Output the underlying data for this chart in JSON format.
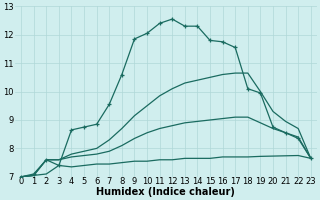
{
  "xlabel": "Humidex (Indice chaleur)",
  "bg_color": "#d0eeee",
  "grid_color": "#b0d8d8",
  "line_color": "#1a6b60",
  "xlim": [
    -0.5,
    23.5
  ],
  "ylim": [
    7,
    13
  ],
  "xticks": [
    0,
    1,
    2,
    3,
    4,
    5,
    6,
    7,
    8,
    9,
    10,
    11,
    12,
    13,
    14,
    15,
    16,
    17,
    18,
    19,
    20,
    21,
    22,
    23
  ],
  "yticks": [
    7,
    8,
    9,
    10,
    11,
    12,
    13
  ],
  "series1_x": [
    0,
    1,
    2,
    3,
    4,
    5,
    6,
    7,
    8,
    9,
    10,
    11,
    12,
    13,
    14,
    15,
    16,
    17,
    18,
    19,
    20,
    21,
    22,
    23
  ],
  "series1_y": [
    7.0,
    7.05,
    7.1,
    7.4,
    7.35,
    7.4,
    7.45,
    7.45,
    7.5,
    7.55,
    7.55,
    7.6,
    7.6,
    7.65,
    7.65,
    7.65,
    7.7,
    7.7,
    7.7,
    7.72,
    7.73,
    7.74,
    7.75,
    7.65
  ],
  "series2_x": [
    0,
    1,
    2,
    3,
    4,
    5,
    6,
    7,
    8,
    9,
    10,
    11,
    12,
    13,
    14,
    15,
    16,
    17,
    18,
    19,
    20,
    21,
    22,
    23
  ],
  "series2_y": [
    7.0,
    7.05,
    7.6,
    7.6,
    7.7,
    7.75,
    7.8,
    7.9,
    8.1,
    8.35,
    8.55,
    8.7,
    8.8,
    8.9,
    8.95,
    9.0,
    9.05,
    9.1,
    9.1,
    8.9,
    8.7,
    8.55,
    8.4,
    7.65
  ],
  "series3_x": [
    0,
    1,
    2,
    3,
    4,
    5,
    6,
    7,
    8,
    9,
    10,
    11,
    12,
    13,
    14,
    15,
    16,
    17,
    18,
    19,
    20,
    21,
    22,
    23
  ],
  "series3_y": [
    7.0,
    7.05,
    7.6,
    7.6,
    7.8,
    7.9,
    8.0,
    8.3,
    8.7,
    9.15,
    9.5,
    9.85,
    10.1,
    10.3,
    10.4,
    10.5,
    10.6,
    10.65,
    10.65,
    10.0,
    9.3,
    8.95,
    8.7,
    7.65
  ],
  "series4_x": [
    0,
    1,
    2,
    3,
    4,
    5,
    6,
    7,
    8,
    9,
    10,
    11,
    12,
    13,
    14,
    15,
    16,
    17,
    18,
    19,
    20,
    21,
    22,
    23
  ],
  "series4_y": [
    7.0,
    7.1,
    7.6,
    7.4,
    8.65,
    8.75,
    8.85,
    9.55,
    10.6,
    11.85,
    12.05,
    12.4,
    12.55,
    12.3,
    12.3,
    11.8,
    11.75,
    11.55,
    10.1,
    9.95,
    8.75,
    8.55,
    8.35,
    7.65
  ],
  "linewidth": 0.9,
  "fontsize_label": 7,
  "fontsize_tick": 6
}
